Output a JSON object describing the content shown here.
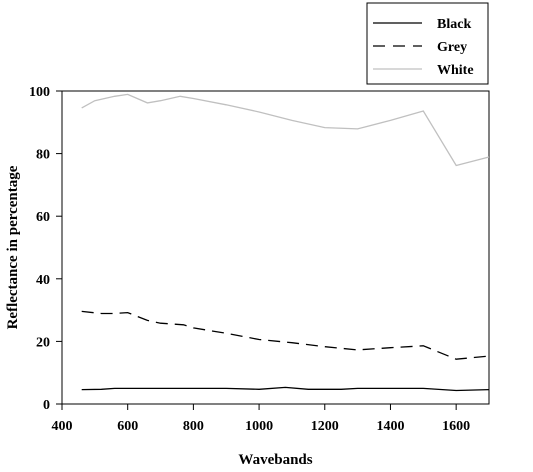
{
  "chart_data": {
    "type": "line",
    "title": "",
    "xlabel": "Wavebands",
    "ylabel": "Reflectance in percentage",
    "xlim": [
      400,
      1700
    ],
    "ylim": [
      0,
      100
    ],
    "xticks": [
      "400",
      "600",
      "800",
      "1000",
      "1200",
      "1400",
      "1600"
    ],
    "yticks": [
      "0",
      "20",
      "40",
      "60",
      "80",
      "100"
    ],
    "xtick_values": [
      400,
      600,
      800,
      1000,
      1200,
      1400,
      1600
    ],
    "ytick_values": [
      0,
      20,
      40,
      60,
      80,
      100
    ],
    "grid": false,
    "legend_position": "top-right",
    "series": [
      {
        "name": "Black",
        "color": "#000000",
        "dash": "solid",
        "x": [
          460,
          520,
          560,
          600,
          700,
          800,
          900,
          1000,
          1080,
          1150,
          1250,
          1300,
          1400,
          1500,
          1600,
          1700
        ],
        "y": [
          4.6,
          4.7,
          5.0,
          5.0,
          5.0,
          5.0,
          5.0,
          4.7,
          5.3,
          4.7,
          4.7,
          5.0,
          5.0,
          5.0,
          4.3,
          4.6
        ]
      },
      {
        "name": "Grey",
        "color": "#000000",
        "dash": "dashed",
        "x": [
          460,
          520,
          560,
          600,
          660,
          700,
          770,
          800,
          900,
          1000,
          1100,
          1200,
          1300,
          1400,
          1500,
          1600,
          1700
        ],
        "y": [
          29.6,
          28.9,
          28.9,
          29.2,
          26.7,
          25.8,
          25.3,
          24.3,
          22.6,
          20.6,
          19.6,
          18.3,
          17.3,
          18.0,
          18.6,
          14.3,
          15.3
        ]
      },
      {
        "name": "White",
        "color": "#c0c0c0",
        "dash": "solid",
        "x": [
          460,
          500,
          560,
          600,
          660,
          700,
          760,
          800,
          900,
          1000,
          1100,
          1200,
          1300,
          1400,
          1500,
          1600,
          1700
        ],
        "y": [
          94.6,
          96.9,
          98.3,
          98.9,
          96.2,
          96.9,
          98.3,
          97.6,
          95.6,
          93.3,
          90.6,
          88.3,
          87.9,
          90.6,
          93.6,
          76.2,
          78.9
        ]
      }
    ]
  }
}
